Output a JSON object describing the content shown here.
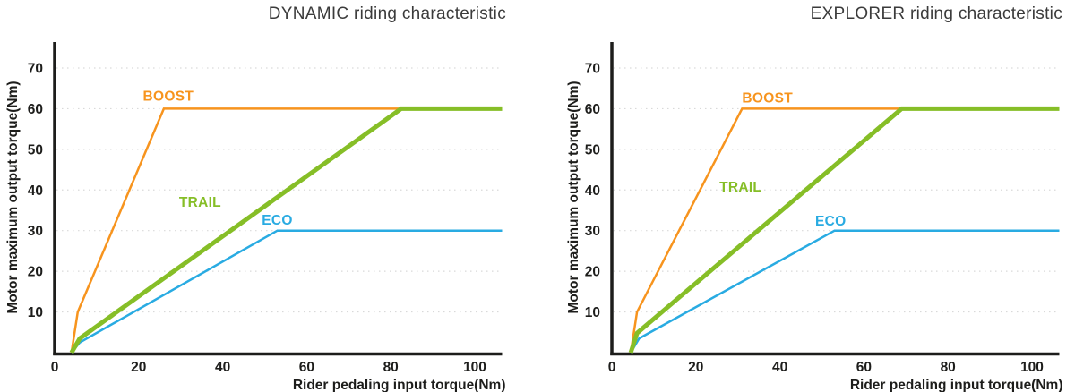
{
  "colors": {
    "background": "#ffffff",
    "axis": "#1d1d1b",
    "grid": "#d9d9d9",
    "title": "#3b3b3b",
    "boost": "#F7941E",
    "trail": "#86BE27",
    "eco": "#29ABE2"
  },
  "chart_data": [
    {
      "type": "line",
      "title": "DYNAMIC riding characteristic",
      "xlabel": "Rider pedaling input torque(Nm)",
      "ylabel": "Motor maximum output torque(Nm)",
      "x_ticks": [
        0,
        20,
        40,
        60,
        80,
        100
      ],
      "y_ticks": [
        10,
        20,
        30,
        40,
        50,
        60,
        70
      ],
      "xlim": [
        0,
        106.5
      ],
      "ylim": [
        0,
        76
      ],
      "grid": "horizontal-dotted",
      "legend_position": "inline-labels",
      "series": [
        {
          "name": "BOOST",
          "color": "#F7941E",
          "line_width": 2.5,
          "points": [
            [
              4,
              0
            ],
            [
              5.5,
              10
            ],
            [
              26,
              60
            ],
            [
              106.5,
              60
            ]
          ],
          "label": {
            "text": "BOOST",
            "x": 21,
            "y": 62
          }
        },
        {
          "name": "ECO",
          "color": "#29ABE2",
          "line_width": 2.5,
          "points": [
            [
              4,
              0
            ],
            [
              6,
              2.5
            ],
            [
              53,
              30
            ],
            [
              106.5,
              30
            ]
          ],
          "label": {
            "text": "ECO",
            "x": 49.3,
            "y": 31.5
          }
        },
        {
          "name": "TRAIL",
          "color": "#86BE27",
          "line_width": 5,
          "points": [
            [
              4,
              0
            ],
            [
              6,
              3.5
            ],
            [
              82.5,
              60
            ],
            [
              106.5,
              60
            ]
          ],
          "label": {
            "text": "TRAIL",
            "x": 29.6,
            "y": 35.9
          }
        }
      ]
    },
    {
      "type": "line",
      "title": "EXPLORER riding characteristic",
      "xlabel": "Rider pedaling input torque(Nm)",
      "ylabel": "Motor maximum output torque(Nm)",
      "x_ticks": [
        0,
        20,
        40,
        60,
        80,
        100
      ],
      "y_ticks": [
        10,
        20,
        30,
        40,
        50,
        60,
        70
      ],
      "xlim": [
        0,
        106.5
      ],
      "ylim": [
        0,
        76
      ],
      "grid": "horizontal-dotted",
      "legend_position": "inline-labels",
      "series": [
        {
          "name": "BOOST",
          "color": "#F7941E",
          "line_width": 2.5,
          "points": [
            [
              4.5,
              0
            ],
            [
              6,
              10
            ],
            [
              31,
              60
            ],
            [
              106.5,
              60
            ]
          ],
          "label": {
            "text": "BOOST",
            "x": 31,
            "y": 61.5
          }
        },
        {
          "name": "ECO",
          "color": "#29ABE2",
          "line_width": 2.5,
          "points": [
            [
              4.5,
              0
            ],
            [
              6.5,
              3.5
            ],
            [
              53,
              30
            ],
            [
              106.5,
              30
            ]
          ],
          "label": {
            "text": "ECO",
            "x": 48.4,
            "y": 31.3
          }
        },
        {
          "name": "TRAIL",
          "color": "#86BE27",
          "line_width": 5,
          "points": [
            [
              4.5,
              0
            ],
            [
              6,
              4.8
            ],
            [
              69,
              60
            ],
            [
              106.5,
              60
            ]
          ],
          "label": {
            "text": "TRAIL",
            "x": 25.6,
            "y": 39.6
          }
        }
      ]
    }
  ]
}
